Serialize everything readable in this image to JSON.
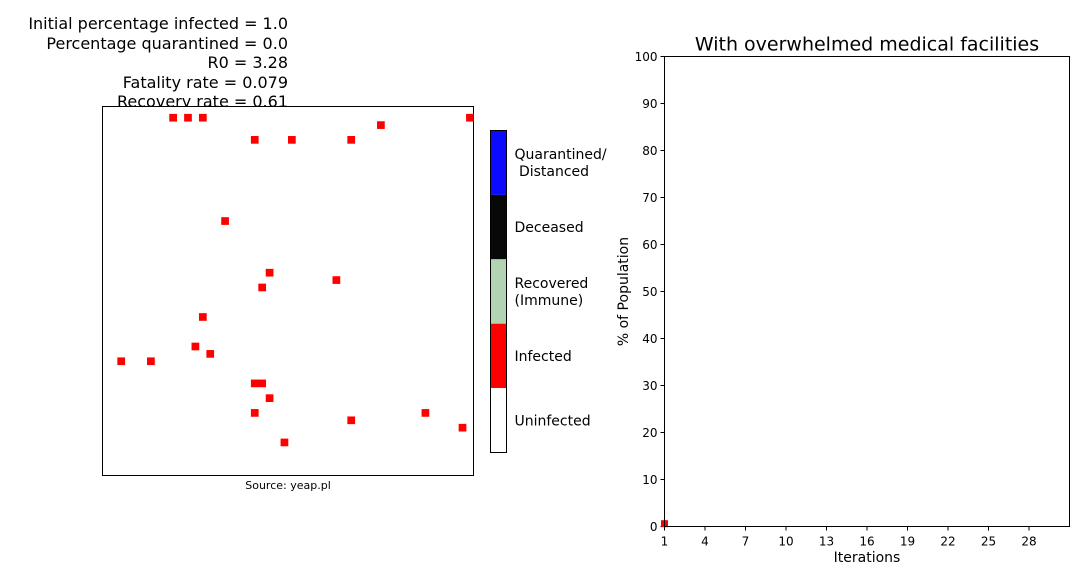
{
  "params": {
    "lines": [
      "Initial percentage infected = 1.0",
      "Percentage quarantined = 0.0",
      "R0 = 3.28",
      "Fatality rate = 0.079",
      "Recovery rate = 0.61"
    ]
  },
  "grid_panel": {
    "caption": "Source: yeap.pl"
  },
  "colorbar": {
    "categories": [
      {
        "label": "Quarantined/\n Distanced",
        "color": "#0b0bff"
      },
      {
        "label": "Deceased",
        "color": "#080808"
      },
      {
        "label": "Recovered\n(Immune)",
        "color": "#b3d4b3"
      },
      {
        "label": "Infected",
        "color": "#ff0000"
      },
      {
        "label": "Uninfected",
        "color": "#ffffff"
      }
    ]
  },
  "chart_data": [
    {
      "type": "heatmap",
      "grid_size": 50,
      "cell_states": [
        "Uninfected",
        "Infected",
        "Recovered (Immune)",
        "Deceased",
        "Quarantined/ Distanced"
      ],
      "infected_cells_row_col": [
        [
          1,
          9
        ],
        [
          1,
          11
        ],
        [
          1,
          13
        ],
        [
          1,
          49
        ],
        [
          2,
          37
        ],
        [
          4,
          20
        ],
        [
          4,
          25
        ],
        [
          4,
          33
        ],
        [
          15,
          16
        ],
        [
          22,
          22
        ],
        [
          23,
          31
        ],
        [
          24,
          21
        ],
        [
          28,
          13
        ],
        [
          32,
          12
        ],
        [
          33,
          14
        ],
        [
          34,
          2
        ],
        [
          34,
          6
        ],
        [
          37,
          20
        ],
        [
          37,
          21
        ],
        [
          39,
          22
        ],
        [
          41,
          20
        ],
        [
          41,
          43
        ],
        [
          42,
          33
        ],
        [
          43,
          48
        ],
        [
          45,
          24
        ]
      ],
      "caption": "Source: yeap.pl"
    },
    {
      "type": "scatter",
      "title": "With overwhelmed medical facilities",
      "xlabel": "Iterations",
      "ylabel": "% of Population",
      "xlim": [
        1,
        31
      ],
      "ylim": [
        0,
        100
      ],
      "xticks": [
        1,
        4,
        7,
        10,
        13,
        16,
        19,
        22,
        25,
        28
      ],
      "yticks": [
        0,
        10,
        20,
        30,
        40,
        50,
        60,
        70,
        80,
        90,
        100
      ],
      "series": [
        {
          "color": "#ff0000",
          "x": [
            1
          ],
          "y": [
            0.6
          ]
        }
      ]
    }
  ]
}
